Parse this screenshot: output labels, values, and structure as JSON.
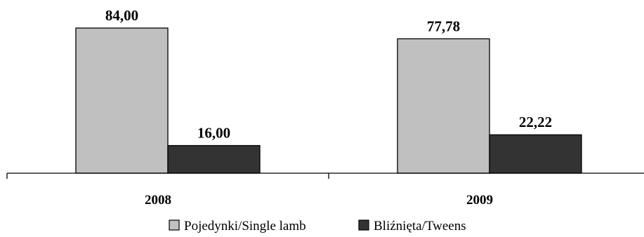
{
  "chart_data": {
    "type": "bar",
    "categories": [
      "2008",
      "2009"
    ],
    "series": [
      {
        "name": "Pojedynki/Single lamb",
        "values": [
          84.0,
          77.78
        ],
        "labels": [
          "84,00",
          "77,78"
        ],
        "color": "#c0c0c0"
      },
      {
        "name": "Bliźnięta/Tweens",
        "values": [
          16.0,
          22.22
        ],
        "labels": [
          "16,00",
          "22,22"
        ],
        "color": "#333333"
      }
    ],
    "ylim": [
      0,
      100
    ],
    "grid": false,
    "legend_position": "bottom-center"
  }
}
